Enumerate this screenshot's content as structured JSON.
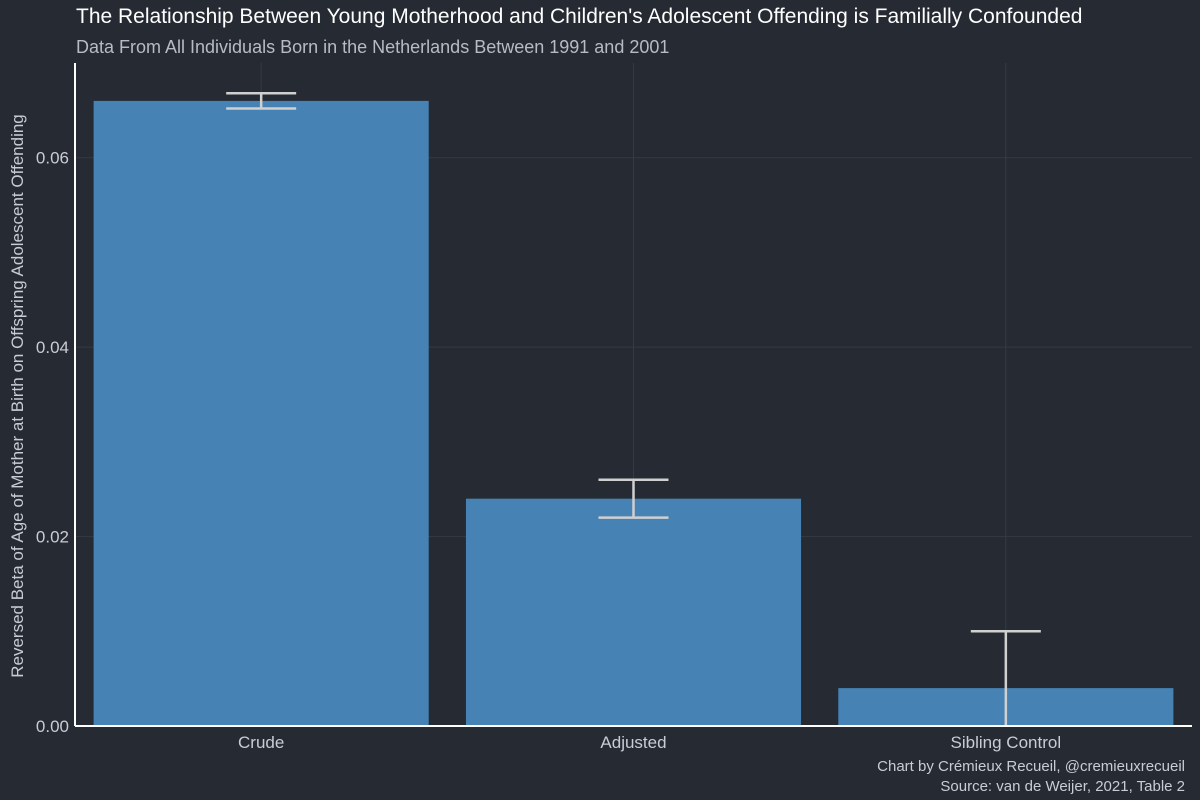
{
  "colors": {
    "background": "#252a33",
    "bar": "#4682b4",
    "errorbar": "#d0d0d0",
    "title": "#ffffff",
    "text": "#c9cdd3"
  },
  "caption": {
    "line1": "Chart by Crémieux Recueil, @cremieuxrecueil",
    "line2": "Source: van de Weijer, 2021, Table 2"
  },
  "chart_data": {
    "type": "bar",
    "title": "The Relationship Between Young Motherhood and Children's Adolescent Offending is Familially Confounded",
    "subtitle": "Data From All Individuals Born in the Netherlands Between 1991 and 2001",
    "xlabel": "",
    "ylabel": "Reversed Beta of Age of Mother at Birth on Offspring Adolescent Offending",
    "categories": [
      "Crude",
      "Adjusted",
      "Sibling Control"
    ],
    "values": [
      0.066,
      0.024,
      0.004
    ],
    "error_bars": [
      {
        "lower": 0.0652,
        "upper": 0.0668
      },
      {
        "lower": 0.022,
        "upper": 0.026
      },
      {
        "lower": 0.0,
        "upper": 0.01
      }
    ],
    "ylim": [
      0,
      0.07
    ],
    "yticks": [
      0.0,
      0.02,
      0.04,
      0.06
    ],
    "ytick_labels": [
      "0.00",
      "0.02",
      "0.04",
      "0.06"
    ],
    "grid": true,
    "legend": "none"
  }
}
